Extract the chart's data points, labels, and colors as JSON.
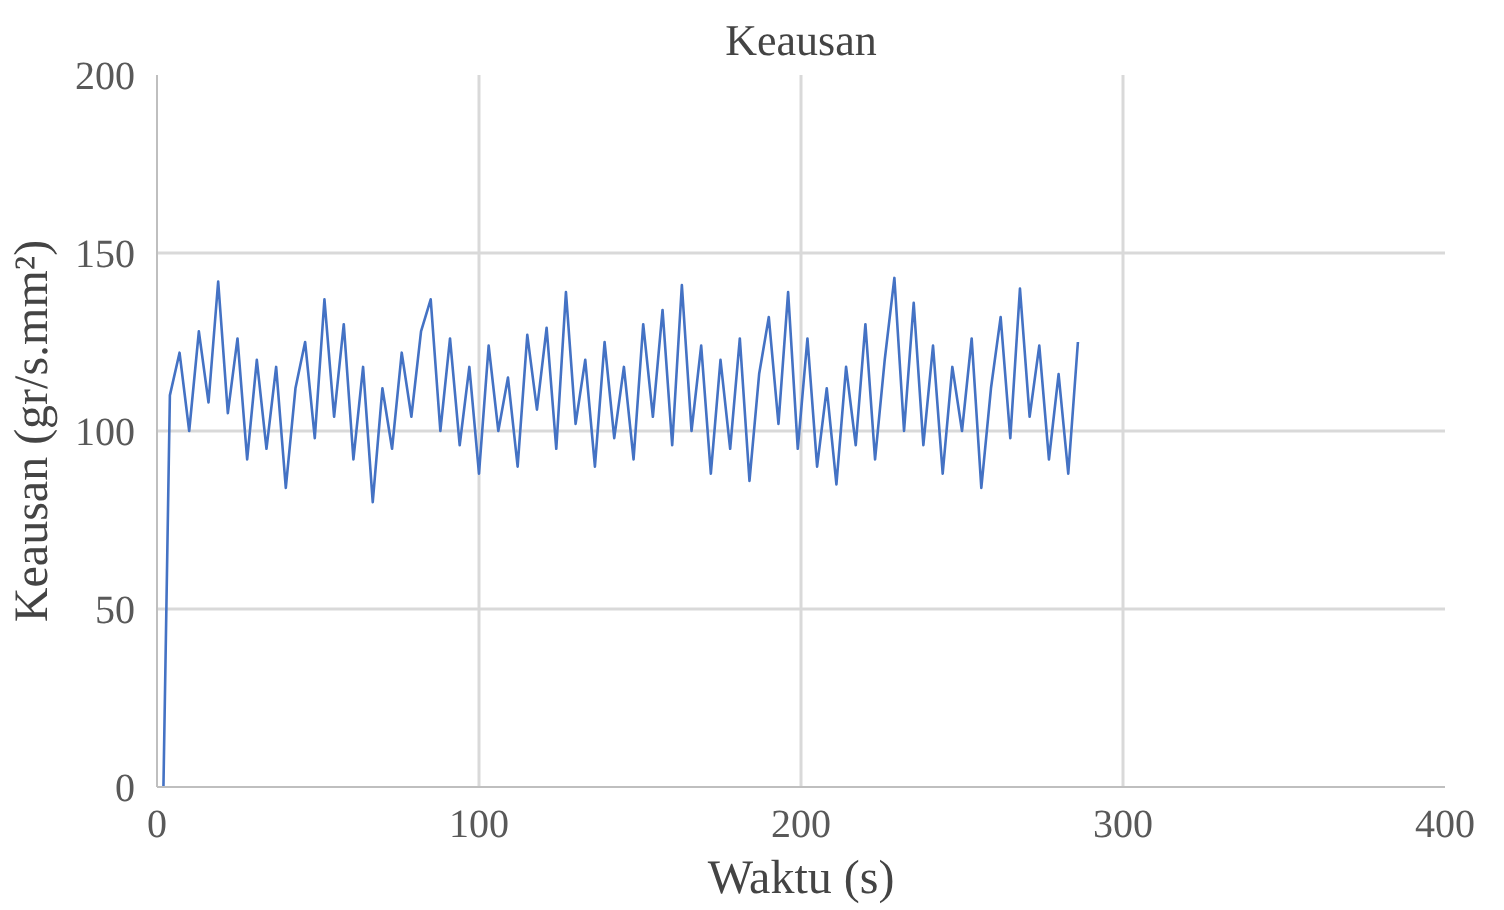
{
  "chart_data": {
    "type": "line",
    "title": "Keausan",
    "xlabel": "Waktu (s)",
    "ylabel": "Keausan (gr/s.mm²)",
    "x": [
      2,
      4,
      7,
      10,
      13,
      16,
      19,
      22,
      25,
      28,
      31,
      34,
      37,
      40,
      43,
      46,
      49,
      52,
      55,
      58,
      61,
      64,
      67,
      70,
      73,
      76,
      79,
      82,
      85,
      88,
      91,
      94,
      97,
      100,
      103,
      106,
      109,
      112,
      115,
      118,
      121,
      124,
      127,
      130,
      133,
      136,
      139,
      142,
      145,
      148,
      151,
      154,
      157,
      160,
      163,
      166,
      169,
      172,
      175,
      178,
      181,
      184,
      187,
      190,
      193,
      196,
      199,
      202,
      205,
      208,
      211,
      214,
      217,
      220,
      223,
      226,
      229,
      232,
      235,
      238,
      241,
      244,
      247,
      250,
      253,
      256,
      259,
      262,
      265,
      268,
      271,
      274,
      277,
      280,
      283,
      286
    ],
    "series": [
      {
        "color": "#4472c4",
        "values": [
          0,
          110,
          122,
          100,
          128,
          108,
          142,
          105,
          126,
          92,
          120,
          95,
          118,
          84,
          112,
          125,
          98,
          137,
          104,
          130,
          92,
          118,
          80,
          112,
          95,
          122,
          104,
          128,
          137,
          100,
          126,
          96,
          118,
          88,
          124,
          100,
          115,
          90,
          127,
          106,
          129,
          95,
          139,
          102,
          120,
          90,
          125,
          98,
          118,
          92,
          130,
          104,
          134,
          96,
          141,
          100,
          124,
          88,
          120,
          95,
          126,
          86,
          116,
          132,
          102,
          139,
          95,
          126,
          90,
          112,
          85,
          118,
          96,
          130,
          92,
          120,
          143,
          100,
          136,
          96,
          124,
          88,
          118,
          100,
          126,
          84,
          112,
          132,
          98,
          140,
          104,
          124,
          92,
          116,
          88,
          125
        ]
      }
    ],
    "xlim": [
      0,
      400
    ],
    "ylim": [
      0,
      200
    ],
    "xticks": [
      0,
      100,
      200,
      300,
      400
    ],
    "yticks": [
      0,
      50,
      100,
      150,
      200
    ],
    "grid": true,
    "line_style": "solid"
  }
}
